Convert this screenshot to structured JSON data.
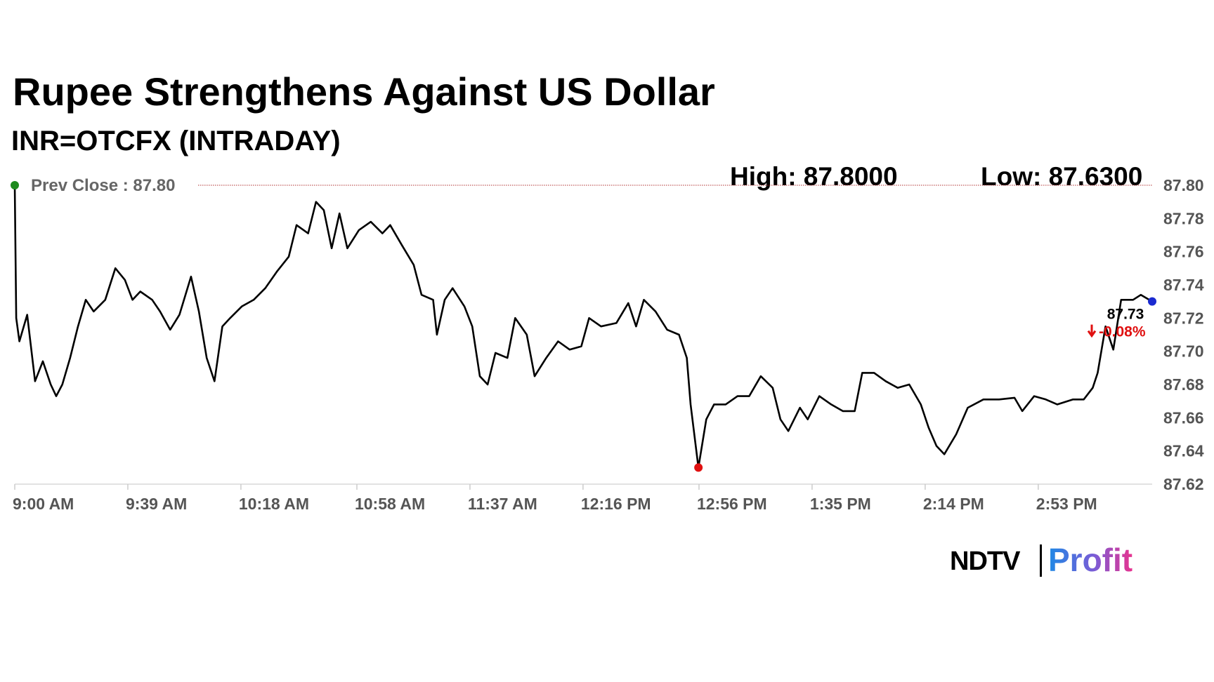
{
  "chart_data": {
    "type": "line",
    "title": "Rupee Strengthens Against US Dollar",
    "subtitle": "INR=OTCFX (INTRADAY)",
    "high_label": "High: 87.8000",
    "low_label": "Low: 87.6300",
    "prev_close": {
      "value": 87.8,
      "label": "Prev Close : 87.80"
    },
    "last_label": "87.73",
    "change_label": "-0.08%",
    "color": "#000000",
    "markers": {
      "first": "#1e8a1e",
      "min": "#e01010",
      "last": "#1a2ad0"
    },
    "grid": false,
    "x": [
      540,
      540.5,
      541.6,
      544.3,
      547.0,
      549.7,
      552.4,
      554.3,
      556.4,
      559.1,
      561.8,
      564.5,
      567.2,
      571.2,
      574.7,
      578.0,
      580.6,
      583.3,
      587.4,
      590.1,
      593.6,
      596.8,
      600.8,
      603.5,
      606.2,
      608.9,
      611.6,
      614.3,
      618.3,
      622.4,
      626.4,
      630.4,
      634.5,
      637.2,
      641.2,
      643.9,
      646.6,
      649.3,
      652.0,
      654.7,
      658.7,
      662.8,
      666.8,
      669.5,
      673.5,
      677.6,
      680.3,
      684.3,
      685.6,
      688.3,
      691.0,
      695.1,
      697.8,
      700.4,
      703.1,
      705.8,
      709.9,
      712.6,
      716.6,
      719.3,
      723.3,
      727.4,
      731.4,
      735.4,
      738.1,
      742.2,
      747.5,
      751.6,
      754.3,
      757.0,
      761.0,
      765.0,
      769.1,
      771.8,
      773.1,
      775.8,
      778.5,
      781.2,
      785.2,
      789.3,
      793.3,
      797.3,
      801.4,
      804.1,
      806.8,
      810.8,
      813.5,
      817.5,
      821.6,
      825.6,
      829.7,
      832.3,
      836.4,
      840.4,
      844.5,
      848.5,
      852.5,
      855.2,
      857.9,
      860.6,
      864.7,
      868.7,
      874.1,
      879.5,
      884.8,
      887.5,
      891.6,
      895.6,
      899.6,
      905.0,
      908.7,
      911.8,
      913.5,
      916.2,
      918.9,
      921.6,
      925.7,
      928.4,
      932.3
    ],
    "values": [
      87.8,
      87.72,
      87.706,
      87.722,
      87.682,
      87.694,
      87.68,
      87.673,
      87.68,
      87.696,
      87.715,
      87.731,
      87.724,
      87.731,
      87.75,
      87.743,
      87.731,
      87.736,
      87.731,
      87.724,
      87.713,
      87.722,
      87.745,
      87.724,
      87.696,
      87.682,
      87.715,
      87.72,
      87.727,
      87.731,
      87.738,
      87.748,
      87.757,
      87.776,
      87.771,
      87.79,
      87.785,
      87.762,
      87.783,
      87.762,
      87.773,
      87.778,
      87.771,
      87.776,
      87.764,
      87.752,
      87.734,
      87.731,
      87.71,
      87.731,
      87.738,
      87.727,
      87.715,
      87.685,
      87.68,
      87.699,
      87.696,
      87.72,
      87.71,
      87.685,
      87.696,
      87.706,
      87.701,
      87.703,
      87.72,
      87.715,
      87.717,
      87.729,
      87.715,
      87.731,
      87.724,
      87.713,
      87.71,
      87.696,
      87.668,
      87.63,
      87.659,
      87.668,
      87.668,
      87.673,
      87.673,
      87.685,
      87.678,
      87.659,
      87.652,
      87.666,
      87.659,
      87.673,
      87.668,
      87.664,
      87.664,
      87.687,
      87.687,
      87.682,
      87.678,
      87.68,
      87.668,
      87.654,
      87.643,
      87.638,
      87.65,
      87.666,
      87.671,
      87.671,
      87.672,
      87.664,
      87.673,
      87.671,
      87.668,
      87.671,
      87.671,
      87.678,
      87.687,
      87.715,
      87.701,
      87.731,
      87.731,
      87.734,
      87.73
    ],
    "xlim": [
      540,
      932.3
    ],
    "xticks": [
      {
        "value": 540,
        "label": "9:00 AM"
      },
      {
        "value": 579,
        "label": "9:39 AM"
      },
      {
        "value": 618,
        "label": "10:18 AM"
      },
      {
        "value": 658,
        "label": "10:58 AM"
      },
      {
        "value": 697,
        "label": "11:37 AM"
      },
      {
        "value": 736,
        "label": "12:16 PM"
      },
      {
        "value": 776,
        "label": "12:56 PM"
      },
      {
        "value": 815,
        "label": "1:35 PM"
      },
      {
        "value": 854,
        "label": "2:14 PM"
      },
      {
        "value": 893,
        "label": "2:53 PM"
      }
    ],
    "ylim": [
      87.62,
      87.8
    ],
    "yticks": [
      {
        "value": 87.8,
        "label": "87.80"
      },
      87.78,
      87.76,
      87.74,
      87.72,
      {
        "value": 87.7,
        "label": "87.70"
      },
      87.68,
      87.66,
      87.64,
      87.62
    ]
  },
  "logo": {
    "brand": "NDTV",
    "product": "Profit"
  }
}
